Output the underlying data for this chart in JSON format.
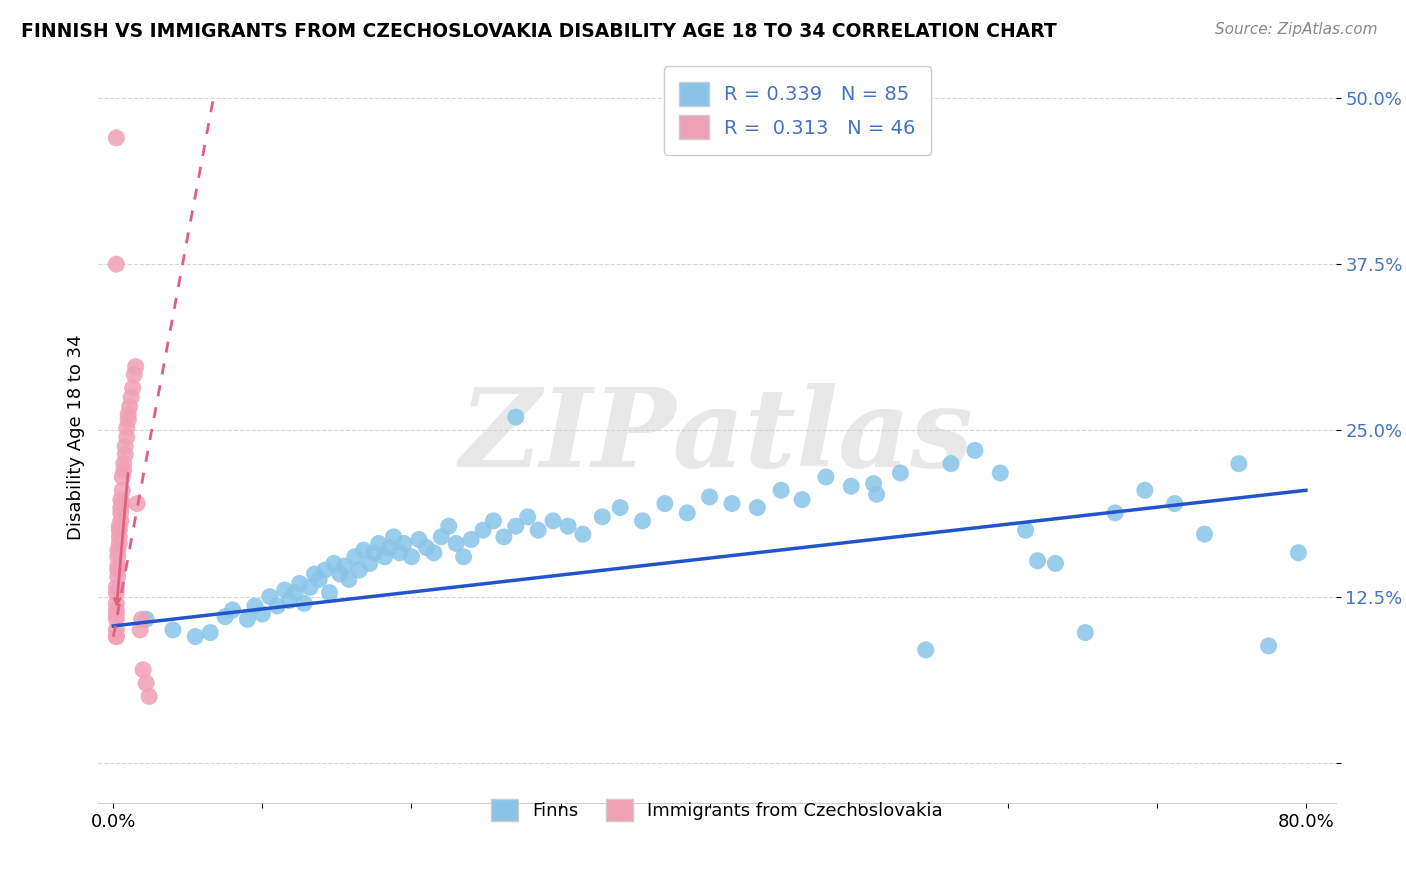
{
  "title": "FINNISH VS IMMIGRANTS FROM CZECHOSLOVAKIA DISABILITY AGE 18 TO 34 CORRELATION CHART",
  "source": "Source: ZipAtlas.com",
  "ylabel": "Disability Age 18 to 34",
  "legend1_label": "Finns",
  "legend2_label": "Immigrants from Czechoslovakia",
  "R1": 0.339,
  "N1": 85,
  "R2": 0.313,
  "N2": 46,
  "blue_color": "#89C4E8",
  "pink_color": "#F0A0B5",
  "blue_line_color": "#2255CC",
  "pink_line_color": "#E06080",
  "xlim": [
    -0.01,
    0.82
  ],
  "ylim": [
    -0.03,
    0.52
  ],
  "xticks": [
    0.0,
    0.1,
    0.2,
    0.3,
    0.4,
    0.5,
    0.6,
    0.7,
    0.8
  ],
  "xtick_labels": [
    "0.0%",
    "",
    "",
    "",
    "",
    "",
    "",
    "",
    "80.0%"
  ],
  "yticks": [
    0.0,
    0.125,
    0.25,
    0.375,
    0.5
  ],
  "ytick_labels": [
    "",
    "12.5%",
    "25.0%",
    "37.5%",
    "50.0%"
  ],
  "watermark": "ZIPatlas",
  "blue_x": [
    0.022,
    0.04,
    0.055,
    0.065,
    0.075,
    0.08,
    0.09,
    0.095,
    0.1,
    0.105,
    0.11,
    0.115,
    0.118,
    0.122,
    0.125,
    0.128,
    0.132,
    0.135,
    0.138,
    0.142,
    0.145,
    0.148,
    0.152,
    0.155,
    0.158,
    0.162,
    0.165,
    0.168,
    0.172,
    0.175,
    0.178,
    0.182,
    0.185,
    0.188,
    0.192,
    0.195,
    0.2,
    0.205,
    0.21,
    0.215,
    0.22,
    0.225,
    0.23,
    0.235,
    0.24,
    0.248,
    0.255,
    0.262,
    0.27,
    0.278,
    0.285,
    0.295,
    0.305,
    0.315,
    0.328,
    0.34,
    0.355,
    0.37,
    0.385,
    0.4,
    0.415,
    0.432,
    0.448,
    0.462,
    0.478,
    0.495,
    0.512,
    0.528,
    0.545,
    0.562,
    0.578,
    0.595,
    0.612,
    0.632,
    0.652,
    0.672,
    0.692,
    0.712,
    0.732,
    0.755,
    0.775,
    0.795,
    0.27,
    0.51,
    0.62
  ],
  "blue_y": [
    0.108,
    0.1,
    0.095,
    0.098,
    0.11,
    0.115,
    0.108,
    0.118,
    0.112,
    0.125,
    0.118,
    0.13,
    0.122,
    0.128,
    0.135,
    0.12,
    0.132,
    0.142,
    0.138,
    0.145,
    0.128,
    0.15,
    0.142,
    0.148,
    0.138,
    0.155,
    0.145,
    0.16,
    0.15,
    0.158,
    0.165,
    0.155,
    0.162,
    0.17,
    0.158,
    0.165,
    0.155,
    0.168,
    0.162,
    0.158,
    0.17,
    0.178,
    0.165,
    0.155,
    0.168,
    0.175,
    0.182,
    0.17,
    0.178,
    0.185,
    0.175,
    0.182,
    0.178,
    0.172,
    0.185,
    0.192,
    0.182,
    0.195,
    0.188,
    0.2,
    0.195,
    0.192,
    0.205,
    0.198,
    0.215,
    0.208,
    0.202,
    0.218,
    0.085,
    0.225,
    0.235,
    0.218,
    0.175,
    0.15,
    0.098,
    0.188,
    0.205,
    0.195,
    0.172,
    0.225,
    0.088,
    0.158,
    0.26,
    0.21,
    0.152
  ],
  "pink_x": [
    0.002,
    0.002,
    0.002,
    0.002,
    0.002,
    0.002,
    0.002,
    0.002,
    0.002,
    0.003,
    0.003,
    0.003,
    0.003,
    0.003,
    0.004,
    0.004,
    0.004,
    0.004,
    0.005,
    0.005,
    0.005,
    0.005,
    0.006,
    0.006,
    0.006,
    0.007,
    0.007,
    0.008,
    0.008,
    0.009,
    0.009,
    0.01,
    0.01,
    0.011,
    0.012,
    0.013,
    0.014,
    0.015,
    0.016,
    0.018,
    0.019,
    0.02,
    0.022,
    0.024,
    0.002,
    0.002
  ],
  "pink_y": [
    0.095,
    0.1,
    0.108,
    0.112,
    0.115,
    0.12,
    0.128,
    0.132,
    0.095,
    0.14,
    0.145,
    0.148,
    0.155,
    0.16,
    0.165,
    0.17,
    0.175,
    0.178,
    0.182,
    0.188,
    0.192,
    0.198,
    0.205,
    0.215,
    0.195,
    0.22,
    0.225,
    0.232,
    0.238,
    0.245,
    0.252,
    0.258,
    0.262,
    0.268,
    0.275,
    0.282,
    0.292,
    0.298,
    0.195,
    0.1,
    0.108,
    0.07,
    0.06,
    0.05,
    0.375,
    0.47
  ],
  "pink_line_x0": 0.0,
  "pink_line_y0": 0.095,
  "pink_line_x1": 0.068,
  "pink_line_y1": 0.505,
  "blue_line_x0": 0.0,
  "blue_line_y0": 0.103,
  "blue_line_x1": 0.8,
  "blue_line_y1": 0.205
}
